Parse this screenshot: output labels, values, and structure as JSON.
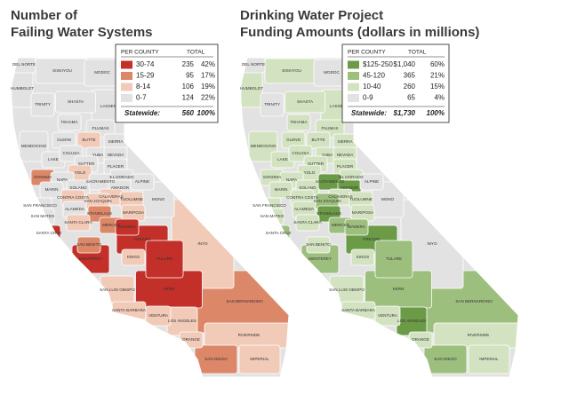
{
  "county_labels": [
    "DEL NORTE",
    "SISKIYOU",
    "MODOC",
    "HUMBOLDT",
    "TRINITY",
    "SHASTA",
    "LASSEN",
    "TEHAMA",
    "PLUMAS",
    "MENDOCINO",
    "GLENN",
    "BUTTE",
    "SIERRA",
    "LAKE",
    "COLUSA",
    "YUBA",
    "NEVADA",
    "SUTTER",
    "PLACER",
    "YOLO",
    "EL DORADO",
    "SONOMA",
    "NAPA",
    "SOLANO",
    "SACRAMENTO",
    "AMADOR",
    "ALPINE",
    "MARIN",
    "CALAVERAS",
    "CONTRA COSTA",
    "SAN JOAQUIN",
    "TUOLUMNE",
    "MONO",
    "SAN FRANCISCO",
    "ALAMEDA",
    "STANISLAUS",
    "SAN MATEO",
    "SANTA CLARA",
    "MARIPOSA",
    "MERCED",
    "MADERA",
    "SANTA CRUZ",
    "FRESNO",
    "SAN BENITO",
    "INYO",
    "MONTEREY",
    "TULARE",
    "KINGS",
    "KERN",
    "SAN LUIS OBISPO",
    "SANTA BARBARA",
    "VENTURA",
    "LOS ANGELES",
    "SAN BERNARDINO",
    "ORANGE",
    "RIVERSIDE",
    "SAN DIEGO",
    "IMPERIAL"
  ],
  "maps": [
    {
      "title_lines": [
        "Number of",
        "Failing Water Systems"
      ],
      "legend": {
        "headers": [
          "PER COUNTY",
          "TOTAL"
        ],
        "rows": [
          {
            "label": "30-74",
            "count": "235",
            "percent": "42%",
            "color": "#c3302a"
          },
          {
            "label": "15-29",
            "count": "95",
            "percent": "17%",
            "color": "#dd8769"
          },
          {
            "label": "8-14",
            "count": "106",
            "percent": "19%",
            "color": "#f2cab8"
          },
          {
            "label": "0-7",
            "count": "124",
            "percent": "22%",
            "color": "#e2e2e2"
          }
        ],
        "statewide": {
          "label": "Statewide:",
          "count": "560",
          "percent": "100%"
        }
      },
      "county_class": [
        3,
        3,
        3,
        3,
        3,
        3,
        3,
        3,
        3,
        3,
        3,
        2,
        3,
        3,
        3,
        3,
        3,
        3,
        3,
        2,
        3,
        1,
        3,
        3,
        3,
        3,
        3,
        3,
        2,
        2,
        2,
        2,
        3,
        3,
        3,
        1,
        3,
        2,
        2,
        1,
        0,
        0,
        0,
        1,
        2,
        0,
        0,
        2,
        0,
        2,
        2,
        2,
        2,
        1,
        2,
        2,
        1,
        2
      ]
    },
    {
      "title_lines": [
        "Drinking Water Project",
        "Funding Amounts (dollars in millions)"
      ],
      "legend": {
        "headers": [
          "PER COUNTY",
          "TOTAL"
        ],
        "rows": [
          {
            "label": "$125-250",
            "count": "$1,040",
            "percent": "60%",
            "color": "#6b9b46"
          },
          {
            "label": "45-120",
            "count": "365",
            "percent": "21%",
            "color": "#9dbf7e"
          },
          {
            "label": "10-40",
            "count": "260",
            "percent": "15%",
            "color": "#d3e3c1"
          },
          {
            "label": "0-9",
            "count": "65",
            "percent": "4%",
            "color": "#e2e2e2"
          }
        ],
        "statewide": {
          "label": "Statewide:",
          "count": "$1,730",
          "percent": "100%"
        }
      },
      "county_class": [
        3,
        2,
        3,
        2,
        3,
        2,
        2,
        2,
        2,
        2,
        2,
        2,
        2,
        2,
        2,
        2,
        2,
        2,
        2,
        2,
        2,
        2,
        2,
        2,
        0,
        0,
        3,
        2,
        2,
        2,
        1,
        2,
        3,
        2,
        2,
        0,
        2,
        2,
        2,
        1,
        1,
        1,
        0,
        2,
        3,
        1,
        1,
        2,
        1,
        2,
        2,
        2,
        0,
        1,
        2,
        2,
        1,
        2
      ]
    }
  ]
}
